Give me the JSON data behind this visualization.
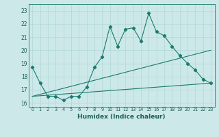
{
  "xlabel": "Humidex (Indice chaleur)",
  "bg_color": "#cce8e8",
  "line_color": "#1a7a6e",
  "xlim": [
    -0.5,
    23.5
  ],
  "ylim": [
    15.7,
    23.5
  ],
  "xticks": [
    0,
    1,
    2,
    3,
    4,
    5,
    6,
    7,
    8,
    9,
    10,
    11,
    12,
    13,
    14,
    15,
    16,
    17,
    18,
    19,
    20,
    21,
    22,
    23
  ],
  "yticks": [
    16,
    17,
    18,
    19,
    20,
    21,
    22,
    23
  ],
  "series1_x": [
    0,
    1,
    2,
    3,
    4,
    5,
    6,
    7,
    8,
    9,
    10,
    11,
    12,
    13,
    14,
    15,
    16,
    17,
    18,
    19,
    20,
    21,
    22,
    23
  ],
  "series1_y": [
    18.7,
    17.5,
    16.5,
    16.5,
    16.2,
    16.5,
    16.5,
    17.2,
    18.7,
    19.5,
    21.8,
    20.3,
    21.6,
    21.7,
    20.7,
    22.8,
    21.4,
    21.1,
    20.3,
    19.6,
    19.0,
    18.5,
    17.8,
    17.5
  ],
  "series2_x": [
    0,
    23
  ],
  "series2_y": [
    16.5,
    17.5
  ],
  "series3_x": [
    0,
    23
  ],
  "series3_y": [
    16.5,
    20.0
  ]
}
